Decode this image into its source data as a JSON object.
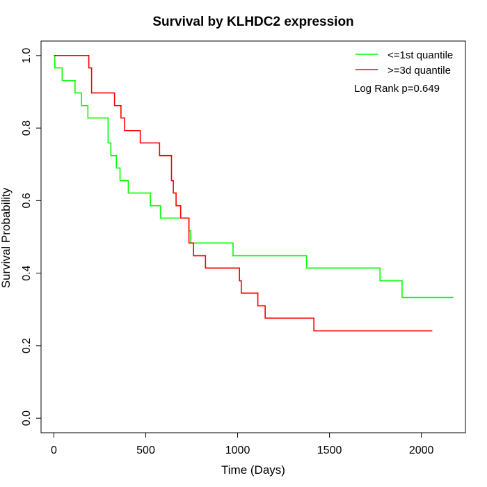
{
  "chart_data": {
    "type": "line",
    "title": "Survival by KLHDC2 expression",
    "xlabel": "Time (Days)",
    "ylabel": "Survival Probability",
    "xlim": [
      -70,
      2240
    ],
    "ylim": [
      -0.04,
      1.04
    ],
    "xticks": [
      0,
      500,
      1000,
      1500,
      2000
    ],
    "yticks": [
      0.0,
      0.2,
      0.4,
      0.6,
      0.8,
      1.0
    ],
    "xtick_labels": [
      "0",
      "500",
      "1000",
      "1500",
      "2000"
    ],
    "ytick_labels": [
      "0.0",
      "0.2",
      "0.4",
      "0.6",
      "0.8",
      "1.0"
    ],
    "grid": false,
    "legend_position": "top-right",
    "annotation": "Log Rank p=0.649",
    "series": [
      {
        "name": "<=1st quantile",
        "color": "#00ff00",
        "steps": [
          [
            0,
            1.0
          ],
          [
            5,
            0.966
          ],
          [
            45,
            0.931
          ],
          [
            115,
            0.897
          ],
          [
            150,
            0.862
          ],
          [
            185,
            0.828
          ],
          [
            295,
            0.759
          ],
          [
            310,
            0.724
          ],
          [
            340,
            0.69
          ],
          [
            360,
            0.655
          ],
          [
            405,
            0.621
          ],
          [
            525,
            0.586
          ],
          [
            580,
            0.552
          ],
          [
            735,
            0.517
          ],
          [
            745,
            0.483
          ],
          [
            975,
            0.448
          ],
          [
            1375,
            0.414
          ],
          [
            1775,
            0.379
          ],
          [
            1895,
            0.333
          ],
          [
            2175,
            0.333
          ]
        ]
      },
      {
        "name": ">=3d quantile",
        "color": "#ff0000",
        "steps": [
          [
            0,
            1.0
          ],
          [
            190,
            0.966
          ],
          [
            205,
            0.897
          ],
          [
            330,
            0.862
          ],
          [
            365,
            0.828
          ],
          [
            385,
            0.793
          ],
          [
            470,
            0.759
          ],
          [
            575,
            0.724
          ],
          [
            640,
            0.655
          ],
          [
            650,
            0.621
          ],
          [
            665,
            0.586
          ],
          [
            690,
            0.552
          ],
          [
            735,
            0.483
          ],
          [
            760,
            0.448
          ],
          [
            825,
            0.414
          ],
          [
            1010,
            0.379
          ],
          [
            1020,
            0.345
          ],
          [
            1110,
            0.31
          ],
          [
            1150,
            0.276
          ],
          [
            1415,
            0.241
          ],
          [
            2060,
            0.241
          ]
        ]
      }
    ]
  }
}
